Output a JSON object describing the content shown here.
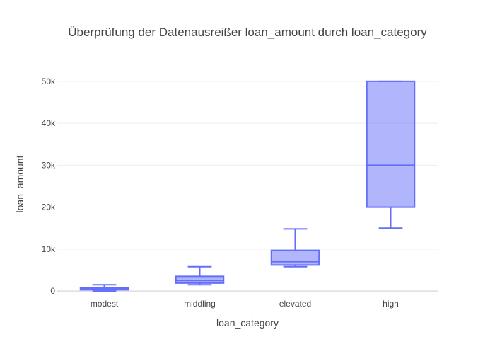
{
  "chart_data": {
    "type": "box",
    "title": "Überprüfung der Datenausreißer loan_amount durch loan_category",
    "xlabel": "loan_category",
    "ylabel": "loan_amount",
    "ylim": [
      -1500,
      52500
    ],
    "yticks": [
      0,
      10000,
      20000,
      30000,
      40000,
      50000
    ],
    "ytick_labels": [
      "0",
      "10k",
      "20k",
      "30k",
      "40k",
      "50k"
    ],
    "categories": [
      "modest",
      "middling",
      "elevated",
      "high"
    ],
    "boxes": [
      {
        "category": "modest",
        "min": 0,
        "q1": 300,
        "median": 500,
        "q3": 800,
        "max": 1500
      },
      {
        "category": "middling",
        "min": 1500,
        "q1": 1900,
        "median": 2500,
        "q3": 3500,
        "max": 5800
      },
      {
        "category": "elevated",
        "min": 5800,
        "q1": 6200,
        "median": 7000,
        "q3": 9700,
        "max": 14800
      },
      {
        "category": "high",
        "min": 15000,
        "q1": 20000,
        "median": 30000,
        "q3": 50000,
        "max": 50000
      }
    ],
    "colors": {
      "box_line": "#636efa",
      "box_fill": "#636efa",
      "grid": "#eeeeee",
      "text": "#444444"
    },
    "grid": true,
    "legend": "none"
  }
}
